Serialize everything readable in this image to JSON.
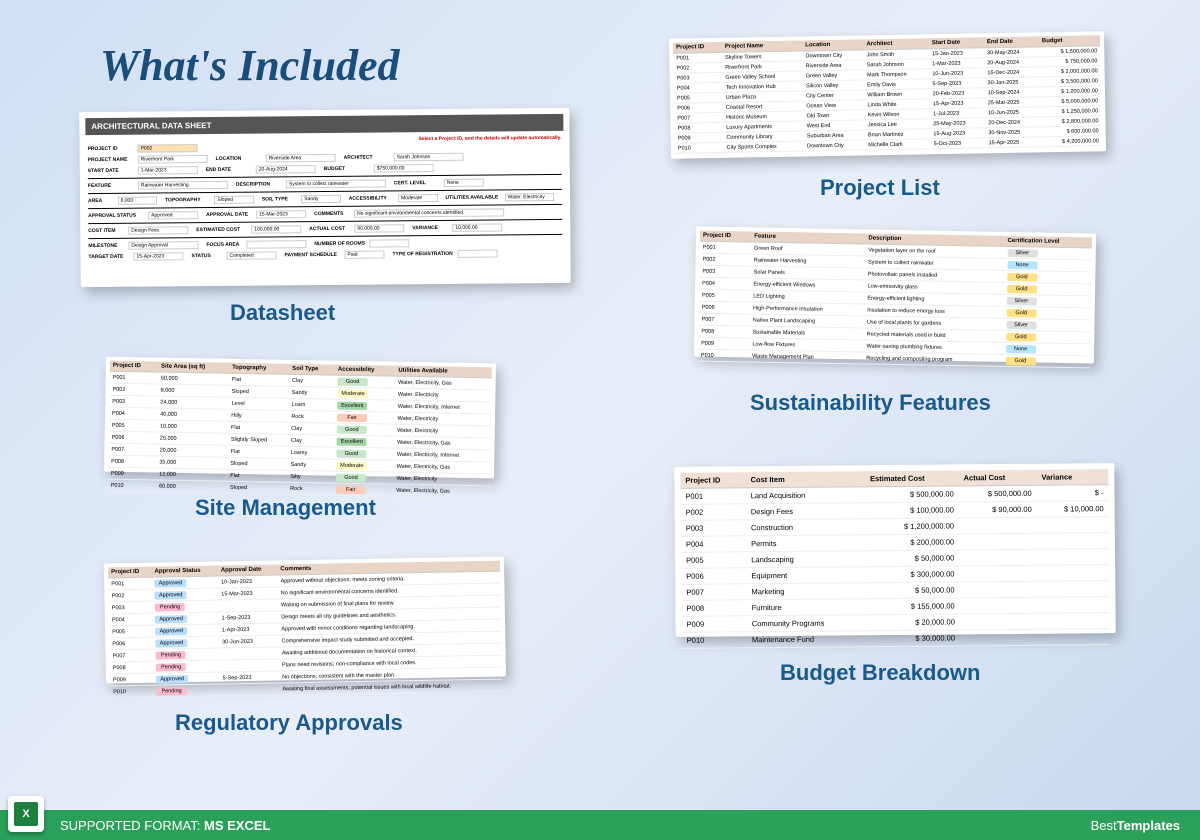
{
  "title": "What's Included",
  "labels": {
    "datasheet": "Datasheet",
    "sitemgmt": "Site Management",
    "regappr": "Regulatory Approvals",
    "projlist": "Project List",
    "sustain": "Sustainability Features",
    "budget": "Budget Breakdown"
  },
  "footer": {
    "format_label": "SUPPORTED FORMAT:",
    "format_value": "MS EXCEL",
    "brand_prefix": "Best",
    "brand_suffix": "Templates",
    "excel_glyph": "X"
  },
  "datasheet": {
    "header": "ARCHITECTURAL DATA SHEET",
    "note": "Select a Project ID, and the details will update automatically.",
    "fields": {
      "project_id_l": "PROJECT ID",
      "project_id_v": "P002",
      "proj_name_l": "PROJECT NAME",
      "proj_name_v": "Riverfront Park",
      "location_l": "LOCATION",
      "location_v": "Riverside Area",
      "architect_l": "ARCHITECT",
      "architect_v": "Sarah Johnson",
      "start_l": "START DATE",
      "start_v": "1-Mar-2023",
      "end_l": "END DATE",
      "end_v": "20-Aug-2024",
      "budget_l": "BUDGET",
      "budget_v": "$750,000.00",
      "feature_l": "FEATURE",
      "feature_v": "Rainwater Harvesting",
      "desc_l": "DESCRIPTION",
      "desc_v": "System to collect rainwater",
      "cert_l": "CERT. LEVEL",
      "cert_v": "None",
      "area_l": "AREA",
      "area_v": "8,000",
      "topo_l": "TOPOGRAPHY",
      "topo_v": "Sloped",
      "soil_l": "SOIL TYPE",
      "soil_v": "Sandy",
      "access_l": "ACCESSIBILITY",
      "access_v": "Moderate",
      "util_l": "UTILITIES AVAILABLE",
      "util_v": "Water, Electricity",
      "appstat_l": "APPROVAL STATUS",
      "appstat_v": "Approved",
      "appdate_l": "APPROVAL DATE",
      "appdate_v": "15-Mar-2023",
      "comments_l": "COMMENTS",
      "comments_v": "No significant environmental concerns identified.",
      "cost_l": "COST ITEM",
      "cost_v": "Design Fees",
      "est_l": "ESTIMATED COST",
      "est_v": "100,000.00",
      "act_l": "ACTUAL COST",
      "act_v": "90,000.00",
      "var_l": "VARIANCE",
      "var_v": "10,000.00",
      "milestone_l": "MILESTONE",
      "milestone_v": "Design Approval",
      "target_l": "TARGET DATE",
      "target_v": "15-Apr-2023",
      "status_l": "STATUS",
      "status_v": "Completed",
      "focus_l": "FOCUS AREA",
      "focus_v": "",
      "rooms_l": "NUMBER OF ROOMS",
      "rooms_v": "",
      "payment_l": "PAYMENT SCHEDULE",
      "payment_v": "",
      "regtype_l": "TYPE OF REGISTRATION",
      "regtype_v": "",
      "food_l": "",
      "food_v": "Paid"
    }
  },
  "projlist": {
    "cols": [
      "Project ID",
      "Project Name",
      "Location",
      "Architect",
      "Start Date",
      "End Date",
      "Budget"
    ],
    "rows": [
      [
        "P001",
        "Skyline Towers",
        "Downtown City",
        "John Smith",
        "15-Jan-2023",
        "30-May-2024",
        "$",
        "1,500,000.00"
      ],
      [
        "P002",
        "Riverfront Park",
        "Riverside Area",
        "Sarah Johnson",
        "1-Mar-2023",
        "20-Aug-2024",
        "$",
        "750,000.00"
      ],
      [
        "P003",
        "Green Valley School",
        "Green Valley",
        "Mark Thompson",
        "10-Jun-2023",
        "15-Dec-2024",
        "$",
        "2,000,000.00"
      ],
      [
        "P004",
        "Tech Innovation Hub",
        "Silicon Valley",
        "Emily Davis",
        "5-Sep-2023",
        "30-Jan-2025",
        "$",
        "3,500,000.00"
      ],
      [
        "P005",
        "Urban Plaza",
        "City Center",
        "William Brown",
        "20-Feb-2023",
        "10-Sep-2024",
        "$",
        "1,200,000.00"
      ],
      [
        "P006",
        "Coastal Resort",
        "Ocean View",
        "Linda White",
        "15-Apr-2023",
        "25-Mar-2025",
        "$",
        "5,000,000.00"
      ],
      [
        "P007",
        "Historic Museum",
        "Old Town",
        "Kevin Wilson",
        "1-Jul-2023",
        "10-Jun-2025",
        "$",
        "1,250,000.00"
      ],
      [
        "P008",
        "Luxury Apartments",
        "West End",
        "Jessica Lee",
        "25-May-2023",
        "20-Dec-2024",
        "$",
        "2,800,000.00"
      ],
      [
        "P009",
        "Community Library",
        "Suburban Area",
        "Brian Martinez",
        "15-Aug-2023",
        "30-Nov-2025",
        "$",
        "600,000.00"
      ],
      [
        "P010",
        "City Sports Complex",
        "Downtown City",
        "Michelle Clark",
        "5-Oct-2023",
        "15-Apr-2025",
        "$",
        "4,200,000.00"
      ]
    ]
  },
  "sitemgmt": {
    "cols": [
      "Project ID",
      "Site Area (sq ft)",
      "Topography",
      "Soil Type",
      "Accessibility",
      "Utilities Available"
    ],
    "rows": [
      [
        "P001",
        "50,000",
        "Flat",
        "Clay",
        "Good",
        "Water, Electricity, Gas"
      ],
      [
        "P002",
        "8,000",
        "Sloped",
        "Sandy",
        "Moderate",
        "Water, Electricity"
      ],
      [
        "P003",
        "24,000",
        "Level",
        "Loam",
        "Excellent",
        "Water, Electricity, Internet"
      ],
      [
        "P004",
        "40,000",
        "Hilly",
        "Rock",
        "Fair",
        "Water, Electricity"
      ],
      [
        "P005",
        "10,000",
        "Flat",
        "Clay",
        "Good",
        "Water, Electricity"
      ],
      [
        "P006",
        "25,000",
        "Slightly Sloped",
        "Clay",
        "Excellent",
        "Water, Electricity, Gas"
      ],
      [
        "P007",
        "20,000",
        "Flat",
        "Loamy",
        "Good",
        "Water, Electricity, Internet"
      ],
      [
        "P008",
        "35,000",
        "Sloped",
        "Sandy",
        "Moderate",
        "Water, Electricity, Gas"
      ],
      [
        "P009",
        "12,000",
        "Flat",
        "Silty",
        "Good",
        "Water, Electricity"
      ],
      [
        "P010",
        "60,000",
        "Sloped",
        "Rock",
        "Fair",
        "Water, Electricity, Gas"
      ]
    ],
    "access_class": [
      "b-good",
      "b-moderate",
      "b-excellent",
      "b-fair",
      "b-good",
      "b-excellent",
      "b-good",
      "b-moderate",
      "b-good",
      "b-fair"
    ]
  },
  "regappr": {
    "cols": [
      "Project ID",
      "Approval Status",
      "Approval Date",
      "Comments"
    ],
    "rows": [
      [
        "P001",
        "Approved",
        "10-Jan-2023",
        "Approved without objections; meets zoning criteria."
      ],
      [
        "P002",
        "Approved",
        "15-Mar-2023",
        "No significant environmental concerns identified."
      ],
      [
        "P003",
        "Pending",
        "",
        "Waiting on submission of final plans for review."
      ],
      [
        "P004",
        "Approved",
        "1-Sep-2023",
        "Design meets all city guidelines and aesthetics."
      ],
      [
        "P005",
        "Approved",
        "1-Apr-2023",
        "Approved with minor conditions regarding landscaping."
      ],
      [
        "P006",
        "Approved",
        "30-Jun-2023",
        "Comprehensive impact study submitted and accepted."
      ],
      [
        "P007",
        "Pending",
        "",
        "Awaiting additional documentation on historical context."
      ],
      [
        "P008",
        "Pending",
        "",
        "Plans need revisions; non-compliance with local codes."
      ],
      [
        "P009",
        "Approved",
        "5-Sep-2023",
        "No objections; consistent with the master plan."
      ],
      [
        "P010",
        "Pending",
        "",
        "Awaiting final assessments; potential issues with local wildlife habitat."
      ]
    ],
    "status_class": [
      "b-approved",
      "b-approved",
      "b-pending",
      "b-approved",
      "b-approved",
      "b-approved",
      "b-pending",
      "b-pending",
      "b-approved",
      "b-pending"
    ]
  },
  "sustain": {
    "cols": [
      "Project ID",
      "Feature",
      "Description",
      "Certification Level"
    ],
    "rows": [
      [
        "P001",
        "Green Roof",
        "Vegetation layer on the roof",
        "Silver"
      ],
      [
        "P002",
        "Rainwater Harvesting",
        "System to collect rainwater",
        "None"
      ],
      [
        "P003",
        "Solar Panels",
        "Photovoltaic panels installed",
        "Gold"
      ],
      [
        "P004",
        "Energy-efficient Windows",
        "Low-emissivity glass",
        "Gold"
      ],
      [
        "P005",
        "LED Lighting",
        "Energy-efficient lighting",
        "Silver"
      ],
      [
        "P006",
        "High-Performance Insulation",
        "Insulation to reduce energy loss",
        "Gold"
      ],
      [
        "P007",
        "Native Plant Landscaping",
        "Use of local plants for gardens",
        "Silver"
      ],
      [
        "P008",
        "Sustainable Materials",
        "Recycled materials used in build",
        "Gold"
      ],
      [
        "P009",
        "Low-flow Fixtures",
        "Water-saving plumbing fixtures",
        "None"
      ],
      [
        "P010",
        "Waste Management Plan",
        "Recycling and composting program",
        "Gold"
      ]
    ],
    "cert_class": [
      "b-silver",
      "b-none",
      "b-gold",
      "b-gold",
      "b-silver",
      "b-gold",
      "b-silver",
      "b-gold",
      "b-none",
      "b-gold"
    ]
  },
  "budget": {
    "cols": [
      "Project ID",
      "Cost Item",
      "Estimated Cost",
      "Actual Cost",
      "Variance"
    ],
    "rows": [
      [
        "P001",
        "Land Acquisition",
        "$",
        "500,000.00",
        "$",
        "500,000.00",
        "$",
        "-"
      ],
      [
        "P002",
        "Design Fees",
        "$",
        "100,000.00",
        "$",
        "90,000.00",
        "$",
        "10,000.00"
      ],
      [
        "P003",
        "Construction",
        "$",
        "1,200,000.00",
        "",
        "",
        "",
        ""
      ],
      [
        "P004",
        "Permits",
        "$",
        "200,000.00",
        "",
        "",
        "",
        ""
      ],
      [
        "P005",
        "Landscaping",
        "$",
        "50,000.00",
        "",
        "",
        "",
        ""
      ],
      [
        "P006",
        "Equipment",
        "$",
        "300,000.00",
        "",
        "",
        "",
        ""
      ],
      [
        "P007",
        "Marketing",
        "$",
        "50,000.00",
        "",
        "",
        "",
        ""
      ],
      [
        "P008",
        "Furniture",
        "$",
        "155,000.00",
        "",
        "",
        "",
        ""
      ],
      [
        "P009",
        "Community Programs",
        "$",
        "20,000.00",
        "",
        "",
        "",
        ""
      ],
      [
        "P010",
        "Maintenance Fund",
        "$",
        "30,000.00",
        "",
        "",
        "",
        ""
      ]
    ]
  }
}
